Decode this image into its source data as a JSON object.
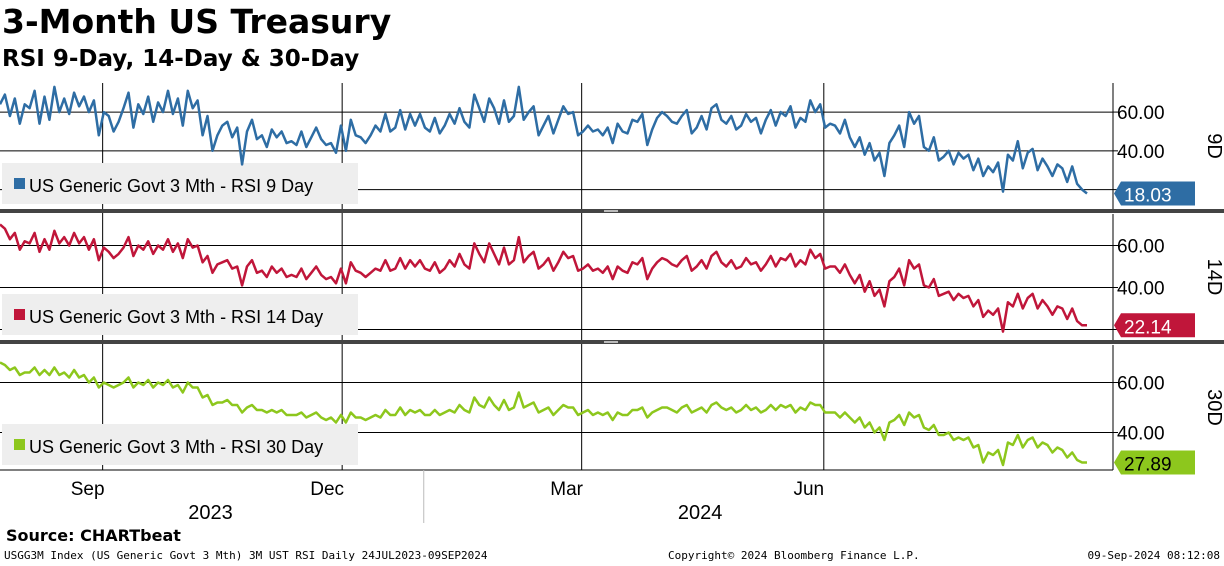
{
  "header": {
    "title": "3-Month US Treasury",
    "subtitle": "RSI 9-Day, 14-Day & 30-Day"
  },
  "chart_data": {
    "type": "line",
    "x_range": [
      "2023-07-24",
      "2024-09-09"
    ],
    "x_labels": [
      {
        "date": "2023-09-01",
        "label": "Sep"
      },
      {
        "date": "2023-12-01",
        "label": "Dec"
      },
      {
        "date": "2024-03-01",
        "label": "Mar"
      },
      {
        "date": "2024-06-01",
        "label": "Jun"
      }
    ],
    "year_labels": [
      {
        "date": "2023-10-12",
        "label": "2023"
      },
      {
        "date": "2024-04-15",
        "label": "2024"
      }
    ],
    "panels": [
      {
        "id": "9d",
        "side_label": "9D",
        "legend": "US Generic Govt 3 Mth - RSI 9 Day",
        "color": "#2e6da4",
        "ylim": [
          10,
          75
        ],
        "y_ticks": [
          20,
          40,
          60
        ],
        "y_tick_labels": [
          "",
          "40.00",
          "60.00"
        ],
        "last_value": "18.03",
        "values": [
          64,
          69,
          58,
          67,
          54,
          64,
          62,
          71,
          54,
          68,
          56,
          73,
          60,
          67,
          59,
          70,
          63,
          68,
          60,
          66,
          48,
          60,
          58,
          50,
          55,
          62,
          70,
          52,
          64,
          59,
          68,
          55,
          65,
          60,
          71,
          59,
          67,
          53,
          71,
          62,
          66,
          48,
          58,
          40,
          48,
          53,
          55,
          47,
          52,
          33,
          50,
          56,
          46,
          48,
          42,
          51,
          47,
          50,
          44,
          45,
          43,
          50,
          42,
          47,
          52,
          46,
          43,
          44,
          39,
          53,
          40,
          56,
          48,
          47,
          44,
          48,
          53,
          50,
          59,
          50,
          52,
          61,
          51,
          59,
          53,
          59,
          52,
          50,
          57,
          49,
          53,
          59,
          54,
          62,
          55,
          52,
          69,
          62,
          55,
          67,
          62,
          54,
          66,
          55,
          58,
          73,
          56,
          60,
          63,
          48,
          53,
          58,
          49,
          56,
          63,
          59,
          60,
          48,
          50,
          53,
          50,
          51,
          48,
          52,
          44,
          54,
          50,
          49,
          56,
          55,
          59,
          43,
          51,
          57,
          60,
          58,
          55,
          54,
          58,
          61,
          49,
          52,
          58,
          51,
          62,
          64,
          56,
          54,
          58,
          51,
          53,
          59,
          55,
          57,
          49,
          56,
          61,
          53,
          60,
          58,
          63,
          52,
          57,
          55,
          66,
          60,
          64,
          52,
          54,
          53,
          49,
          56,
          47,
          42,
          47,
          38,
          44,
          35,
          39,
          27,
          44,
          48,
          53,
          42,
          60,
          54,
          58,
          42,
          40,
          47,
          35,
          37,
          40,
          33,
          39,
          36,
          38,
          30,
          36,
          27,
          32,
          29,
          34,
          19,
          38,
          35,
          45,
          31,
          39,
          41,
          30,
          36,
          32,
          27,
          33,
          31,
          24,
          32,
          23,
          20,
          18
        ]
      },
      {
        "id": "14d",
        "side_label": "14D",
        "legend": "US Generic Govt 3 Mth - RSI 14 Day",
        "color": "#c0163a",
        "ylim": [
          15,
          75
        ],
        "y_ticks": [
          20,
          40,
          60
        ],
        "y_tick_labels": [
          "",
          "40.00",
          "60.00"
        ],
        "last_value": "22.14",
        "values": [
          70,
          68,
          63,
          66,
          58,
          62,
          61,
          66,
          57,
          63,
          58,
          67,
          61,
          64,
          60,
          66,
          61,
          64,
          58,
          63,
          53,
          59,
          57,
          54,
          56,
          59,
          64,
          55,
          60,
          58,
          62,
          56,
          60,
          58,
          63,
          57,
          61,
          54,
          63,
          59,
          60,
          52,
          55,
          47,
          51,
          52,
          53,
          49,
          50,
          41,
          50,
          53,
          47,
          48,
          45,
          50,
          47,
          49,
          45,
          46,
          45,
          49,
          44,
          47,
          50,
          46,
          44,
          45,
          42,
          49,
          42,
          52,
          48,
          47,
          45,
          47,
          49,
          48,
          53,
          48,
          49,
          54,
          49,
          53,
          50,
          53,
          49,
          48,
          52,
          47,
          49,
          53,
          50,
          56,
          51,
          49,
          61,
          56,
          52,
          61,
          56,
          51,
          59,
          51,
          53,
          64,
          52,
          55,
          57,
          49,
          51,
          54,
          48,
          52,
          57,
          54,
          55,
          48,
          49,
          51,
          48,
          49,
          47,
          50,
          44,
          50,
          48,
          47,
          52,
          51,
          54,
          44,
          49,
          52,
          54,
          53,
          51,
          50,
          53,
          55,
          48,
          50,
          53,
          49,
          55,
          57,
          52,
          50,
          53,
          49,
          50,
          54,
          51,
          52,
          48,
          51,
          55,
          50,
          54,
          53,
          56,
          50,
          53,
          51,
          58,
          54,
          56,
          49,
          50,
          50,
          47,
          51,
          46,
          42,
          46,
          38,
          43,
          36,
          39,
          31,
          43,
          45,
          49,
          41,
          53,
          49,
          51,
          41,
          40,
          44,
          36,
          37,
          38,
          34,
          37,
          35,
          36,
          31,
          34,
          26,
          29,
          27,
          30,
          19,
          33,
          31,
          37,
          30,
          35,
          37,
          30,
          34,
          31,
          27,
          31,
          30,
          25,
          30,
          24,
          22,
          22
        ]
      },
      {
        "id": "30d",
        "side_label": "30D",
        "legend": "US Generic Govt 3 Mth - RSI 30 Day",
        "color": "#8dc71d",
        "ylim": [
          25,
          75
        ],
        "y_ticks": [
          40,
          60
        ],
        "y_tick_labels": [
          "40.00",
          "60.00"
        ],
        "last_value": "27.89",
        "values": [
          68,
          67,
          65,
          66,
          63,
          64,
          64,
          66,
          63,
          65,
          63,
          66,
          63,
          64,
          62,
          65,
          62,
          63,
          60,
          62,
          58,
          60,
          59,
          58,
          59,
          60,
          62,
          58,
          60,
          59,
          61,
          58,
          60,
          59,
          61,
          58,
          59,
          56,
          60,
          58,
          58,
          54,
          55,
          51,
          52,
          52,
          53,
          51,
          51,
          48,
          50,
          51,
          49,
          49,
          48,
          49,
          48,
          49,
          47,
          47,
          47,
          48,
          46,
          47,
          48,
          46,
          45,
          46,
          44,
          47,
          44,
          48,
          46,
          46,
          45,
          46,
          47,
          46,
          49,
          47,
          47,
          50,
          47,
          49,
          48,
          49,
          47,
          47,
          49,
          47,
          48,
          49,
          48,
          51,
          49,
          48,
          54,
          51,
          50,
          54,
          51,
          49,
          53,
          49,
          50,
          56,
          50,
          51,
          52,
          48,
          49,
          50,
          47,
          49,
          51,
          50,
          50,
          47,
          48,
          49,
          47,
          48,
          47,
          48,
          45,
          48,
          47,
          47,
          49,
          49,
          50,
          46,
          48,
          49,
          50,
          50,
          49,
          48,
          50,
          51,
          48,
          49,
          50,
          48,
          51,
          52,
          50,
          49,
          50,
          48,
          49,
          51,
          49,
          50,
          48,
          49,
          51,
          49,
          51,
          50,
          51,
          48,
          50,
          49,
          52,
          51,
          51,
          48,
          48,
          48,
          46,
          48,
          46,
          44,
          46,
          42,
          44,
          40,
          42,
          37,
          44,
          45,
          47,
          43,
          48,
          46,
          47,
          42,
          41,
          43,
          39,
          39,
          40,
          37,
          38,
          37,
          38,
          34,
          35,
          28,
          32,
          31,
          33,
          27,
          36,
          35,
          39,
          34,
          37,
          38,
          34,
          36,
          35,
          32,
          34,
          33,
          30,
          32,
          29,
          28,
          28
        ]
      }
    ]
  },
  "source": "Source: CHARTbeat",
  "footer": {
    "left": "USGG3M Index (US Generic Govt 3 Mth) 3M UST RSI  Daily 24JUL2023-09SEP2024",
    "center": "Copyright© 2024 Bloomberg Finance L.P.",
    "right": "09-Sep-2024 08:12:08"
  }
}
